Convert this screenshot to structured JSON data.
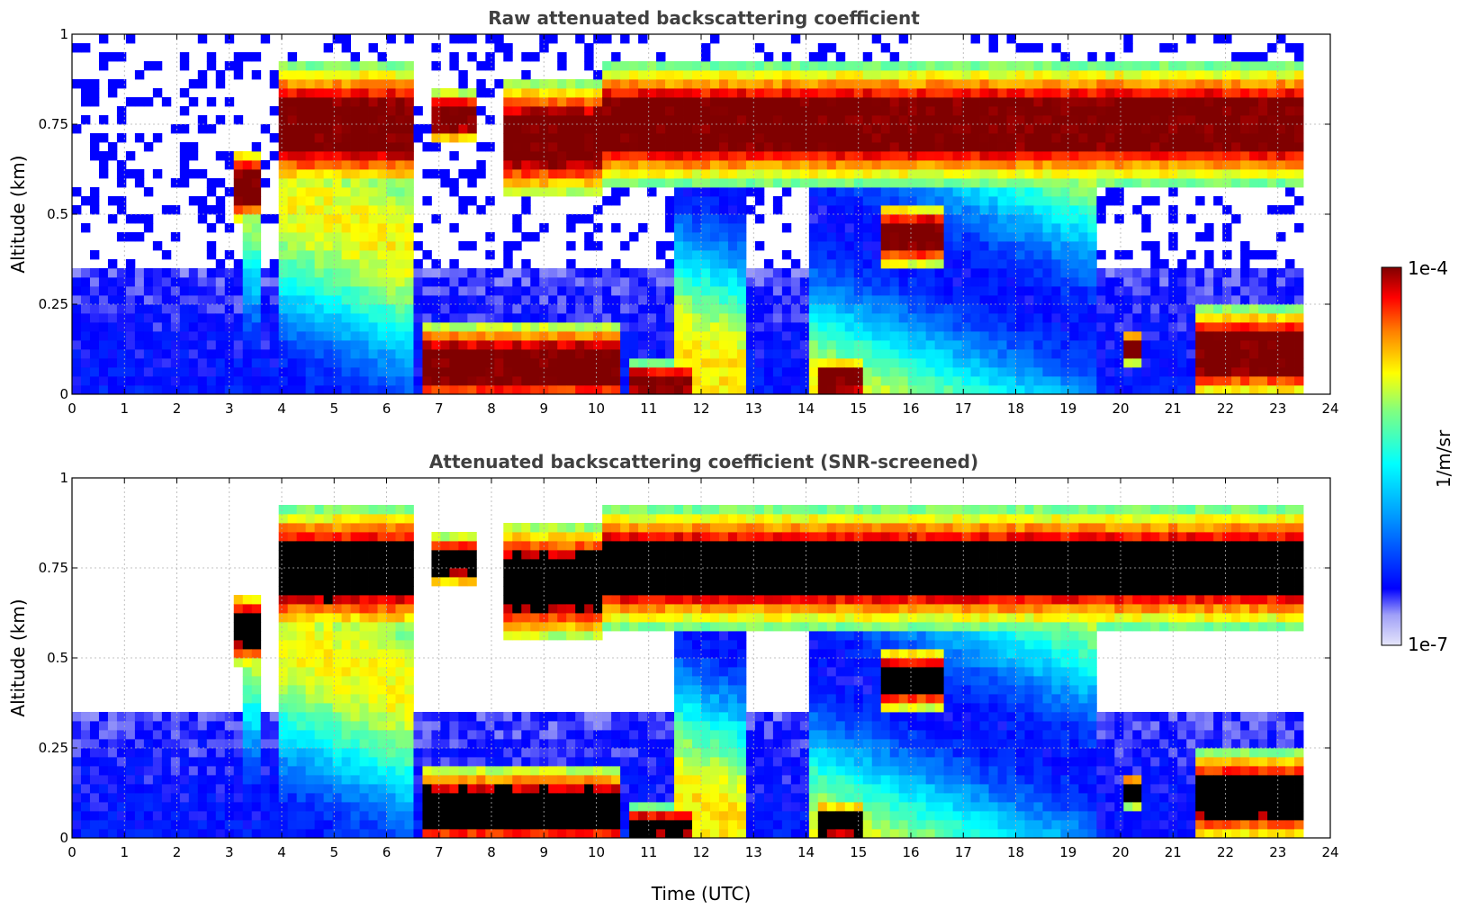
{
  "chart_data": [
    {
      "type": "heatmap",
      "title": "Raw attenuated backscattering coefficient",
      "xlabel": "",
      "ylabel": "Altitude (km)",
      "xlim": [
        0,
        24
      ],
      "ylim": [
        0,
        1
      ],
      "xticks": [
        "0",
        "1",
        "2",
        "3",
        "4",
        "5",
        "6",
        "7",
        "8",
        "9",
        "10",
        "11",
        "12",
        "13",
        "14",
        "15",
        "16",
        "17",
        "18",
        "19",
        "20",
        "21",
        "22",
        "23",
        "24"
      ],
      "yticks": [
        "0",
        "0.25",
        "0.5",
        "0.75",
        "1"
      ],
      "grid": true,
      "screened": false,
      "data_end_hour": 23.55,
      "cloud_layers": [
        {
          "start": 3.1,
          "end": 3.6,
          "bottom": 0.51,
          "top": 0.65
        },
        {
          "start": 3.9,
          "end": 6.6,
          "bottom": 0.63,
          "top": 0.86
        },
        {
          "start": 6.9,
          "end": 7.7,
          "bottom": 0.72,
          "top": 0.82
        },
        {
          "start": 8.3,
          "end": 10.1,
          "bottom": 0.6,
          "top": 0.82
        },
        {
          "start": 10.1,
          "end": 23.55,
          "bottom": 0.64,
          "top": 0.86
        },
        {
          "start": 15.5,
          "end": 16.6,
          "bottom": 0.38,
          "top": 0.5
        },
        {
          "start": 6.7,
          "end": 10.4,
          "bottom": 0.0,
          "top": 0.16
        },
        {
          "start": 10.7,
          "end": 11.9,
          "bottom": 0.0,
          "top": 0.07
        },
        {
          "start": 14.2,
          "end": 15.0,
          "bottom": 0.0,
          "top": 0.08
        },
        {
          "start": 20.0,
          "end": 20.4,
          "bottom": 0.1,
          "top": 0.16
        },
        {
          "start": 21.4,
          "end": 23.5,
          "bottom": 0.03,
          "top": 0.2
        }
      ],
      "precip_streaks": [
        {
          "start": 3.3,
          "end": 6.7
        },
        {
          "start": 11.4,
          "end": 12.9
        },
        {
          "start": 14.0,
          "end": 17.8
        },
        {
          "start": 17.8,
          "end": 19.6
        }
      ]
    },
    {
      "type": "heatmap",
      "title": "Attenuated backscattering coefficient (SNR-screened)",
      "xlabel": "Time (UTC)",
      "ylabel": "Altitude (km)",
      "xlim": [
        0,
        24
      ],
      "ylim": [
        0,
        1
      ],
      "xticks": [
        "0",
        "1",
        "2",
        "3",
        "4",
        "5",
        "6",
        "7",
        "8",
        "9",
        "10",
        "11",
        "12",
        "13",
        "14",
        "15",
        "16",
        "17",
        "18",
        "19",
        "20",
        "21",
        "22",
        "23",
        "24"
      ],
      "yticks": [
        "0",
        "0.25",
        "0.5",
        "0.75",
        "1"
      ],
      "grid": true,
      "screened": true,
      "data_end_hour": 23.55,
      "cloud_layers": [
        {
          "start": 3.1,
          "end": 3.6,
          "bottom": 0.51,
          "top": 0.65
        },
        {
          "start": 3.9,
          "end": 6.6,
          "bottom": 0.63,
          "top": 0.86
        },
        {
          "start": 6.9,
          "end": 7.7,
          "bottom": 0.72,
          "top": 0.82
        },
        {
          "start": 8.3,
          "end": 10.1,
          "bottom": 0.6,
          "top": 0.82
        },
        {
          "start": 10.1,
          "end": 23.55,
          "bottom": 0.64,
          "top": 0.86
        },
        {
          "start": 15.5,
          "end": 16.6,
          "bottom": 0.38,
          "top": 0.5
        },
        {
          "start": 6.7,
          "end": 10.4,
          "bottom": 0.0,
          "top": 0.16
        },
        {
          "start": 10.7,
          "end": 11.9,
          "bottom": 0.0,
          "top": 0.07
        },
        {
          "start": 14.2,
          "end": 15.0,
          "bottom": 0.0,
          "top": 0.08
        },
        {
          "start": 20.0,
          "end": 20.4,
          "bottom": 0.1,
          "top": 0.16
        },
        {
          "start": 21.4,
          "end": 23.5,
          "bottom": 0.03,
          "top": 0.2
        }
      ],
      "precip_streaks": [
        {
          "start": 3.3,
          "end": 6.7
        },
        {
          "start": 11.4,
          "end": 12.9
        },
        {
          "start": 14.0,
          "end": 17.8
        },
        {
          "start": 17.8,
          "end": 19.6
        }
      ]
    }
  ],
  "colorbar": {
    "max_label": "1e-4",
    "min_label": "1e-7",
    "unit_label": "1/m/sr",
    "colormap": "jet",
    "under_color": "#e6e6fa",
    "over_color": "#000000"
  }
}
